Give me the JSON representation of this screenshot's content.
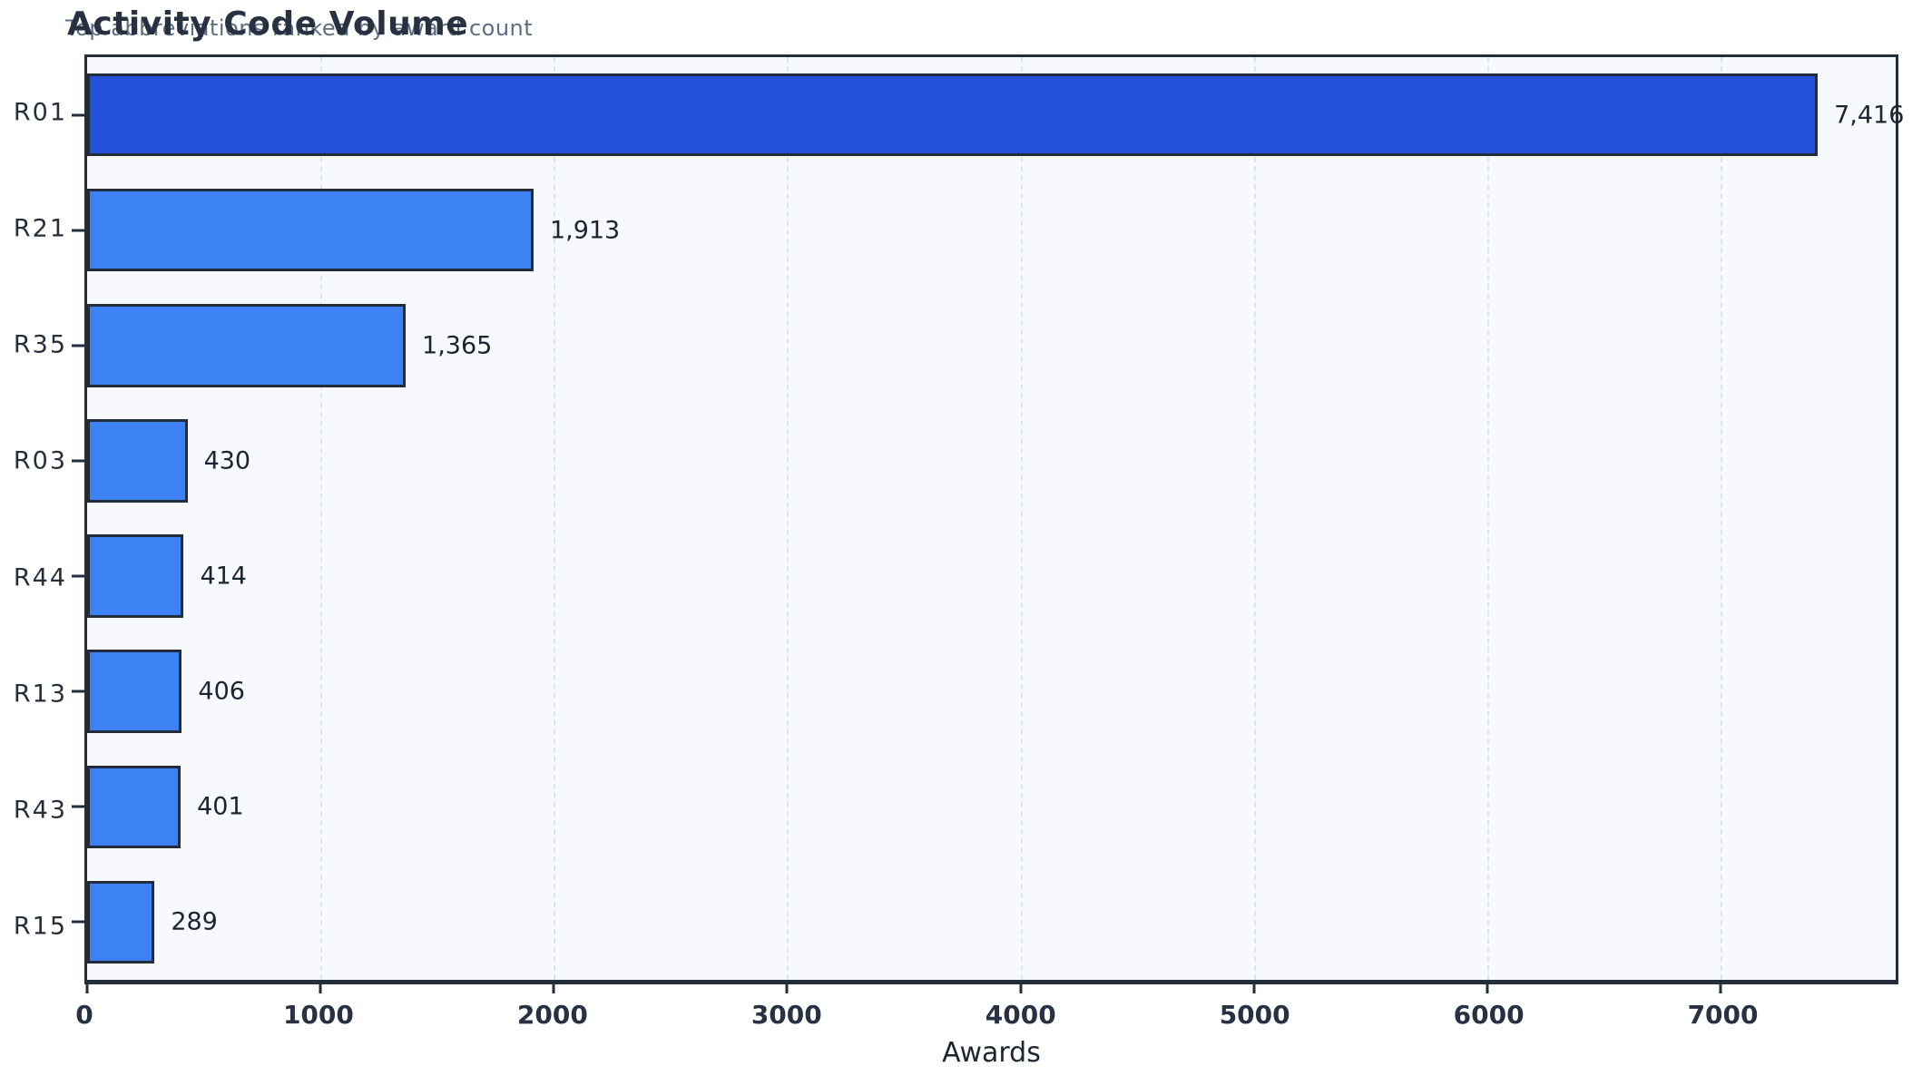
{
  "header": {
    "title": "Activity Code Volume",
    "subtitle": "Top abbreviations ranked by award count"
  },
  "chart_data": {
    "type": "bar",
    "orientation": "horizontal",
    "title": "Activity Code Volume",
    "subtitle": "Top abbreviations ranked by award count",
    "xlabel": "Awards",
    "ylabel": "",
    "categories": [
      "R01",
      "R21",
      "R35",
      "R03",
      "R44",
      "R13",
      "R43",
      "R15"
    ],
    "values": [
      7416,
      1913,
      1365,
      430,
      414,
      406,
      401,
      289
    ],
    "value_labels": [
      "7,416",
      "1,913",
      "1,365",
      "430",
      "414",
      "406",
      "401",
      "289"
    ],
    "xlim": [
      0,
      7750
    ],
    "xticks": [
      0,
      1000,
      2000,
      3000,
      4000,
      5000,
      6000,
      7000
    ],
    "xtick_labels": [
      "0",
      "1000",
      "2000",
      "3000",
      "4000",
      "5000",
      "6000",
      "7000"
    ],
    "grid": "vertical-dashed",
    "legend": "none",
    "highlight_index": 0,
    "colors": {
      "bar_highlight": "#2351d9",
      "bar_default": "#3d82f5",
      "bar_border": "#222c3a",
      "plot_background": "#f7f9fc",
      "figure_background": "#ffffff",
      "gridline": "#dde4f1",
      "title": "#273142",
      "subtitle": "#5d6d82",
      "tick_label": "#273142",
      "value_label": "#1b2433"
    }
  }
}
